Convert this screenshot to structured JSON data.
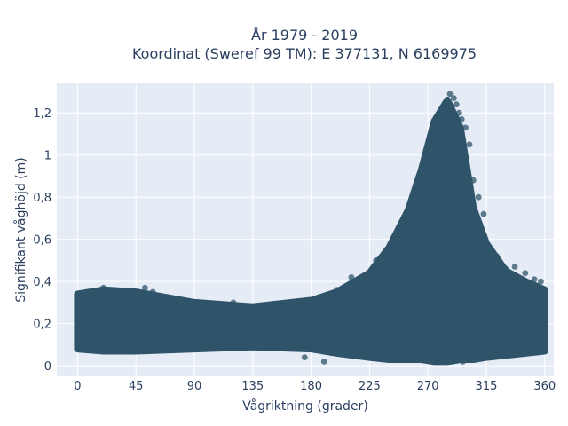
{
  "chart_data": {
    "type": "scatter",
    "title": "År 1979 - 2019",
    "subtitle": "Koordinat (Sweref 99 TM): E 377131, N 6169975",
    "xlabel": "Vågriktning (grader)",
    "ylabel": "Signifikant våghöjd (m)",
    "xlim": [
      -16,
      367
    ],
    "ylim": [
      -0.05,
      1.34
    ],
    "x_ticks": [
      0,
      45,
      90,
      135,
      180,
      225,
      270,
      315,
      360
    ],
    "x_tick_labels": [
      "0",
      "45",
      "90",
      "135",
      "180",
      "225",
      "270",
      "315",
      "360"
    ],
    "y_ticks": [
      0,
      0.2,
      0.4,
      0.6,
      0.8,
      1.0,
      1.2
    ],
    "y_tick_labels": [
      "0",
      "0,2",
      "0,4",
      "0,6",
      "0,8",
      "1",
      "1,2"
    ],
    "grid": true,
    "colors": {
      "plot_background": "#e5ecf6",
      "grid": "#ffffff",
      "marker": "#2f5469"
    },
    "series": [
      {
        "name": "",
        "envelope": {
          "x": [
            0,
            20,
            45,
            90,
            135,
            180,
            200,
            225,
            240,
            255,
            265,
            275,
            285,
            295,
            305,
            315,
            330,
            345,
            360
          ],
          "y_low": [
            0.08,
            0.07,
            0.07,
            0.08,
            0.09,
            0.08,
            0.06,
            0.04,
            0.03,
            0.03,
            0.03,
            0.02,
            0.02,
            0.03,
            0.03,
            0.04,
            0.05,
            0.06,
            0.07
          ],
          "y_high": [
            0.34,
            0.36,
            0.35,
            0.3,
            0.28,
            0.31,
            0.35,
            0.44,
            0.56,
            0.74,
            0.93,
            1.16,
            1.26,
            1.13,
            0.75,
            0.58,
            0.45,
            0.4,
            0.36
          ]
        },
        "points": {
          "x": [
            20,
            27,
            52,
            58,
            120,
            147,
            200,
            211,
            230,
            243,
            250,
            256,
            262,
            268,
            272,
            276,
            279,
            282,
            285,
            287,
            290,
            292,
            294,
            296,
            299,
            302,
            305,
            309,
            313,
            317,
            323,
            330,
            337,
            345,
            352,
            357,
            190,
            175,
            297,
            284
          ],
          "y": [
            0.37,
            0.33,
            0.37,
            0.35,
            0.3,
            0.29,
            0.36,
            0.42,
            0.5,
            0.56,
            0.62,
            0.66,
            0.8,
            0.92,
            1.0,
            1.12,
            1.18,
            1.21,
            1.26,
            1.29,
            1.27,
            1.24,
            1.2,
            1.17,
            1.13,
            1.05,
            0.88,
            0.8,
            0.72,
            0.55,
            0.52,
            0.46,
            0.47,
            0.44,
            0.41,
            0.4,
            0.02,
            0.04,
            0.02,
            0.03
          ]
        }
      }
    ]
  }
}
